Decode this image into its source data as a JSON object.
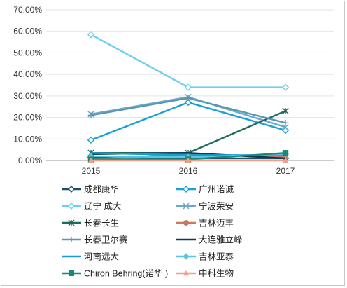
{
  "chart_data": {
    "type": "line",
    "x": [
      "2015",
      "2016",
      "2017"
    ],
    "yticks": [
      "0.00%",
      "10.00%",
      "20.00%",
      "30.00%",
      "40.00%",
      "50.00%",
      "60.00%",
      "70.00%"
    ],
    "ylim": [
      0,
      70
    ],
    "grid": true,
    "legend_position": "bottom",
    "series": [
      {
        "name": "成都康华",
        "values": [
          1.5,
          1.0,
          1.0
        ],
        "color": "#1b4f6b",
        "marker": "diamond"
      },
      {
        "name": "广州诺诚",
        "values": [
          9.5,
          27.0,
          14.0
        ],
        "color": "#1aa0d6",
        "marker": "diamond"
      },
      {
        "name": "辽宁 成大",
        "values": [
          58.5,
          34.0,
          34.0
        ],
        "color": "#6fd0ee",
        "marker": "diamond"
      },
      {
        "name": "宁波荣安",
        "values": [
          21.5,
          29.5,
          15.5
        ],
        "color": "#6aa9c8",
        "marker": "x"
      },
      {
        "name": "长春长生",
        "values": [
          3.5,
          3.5,
          23.0
        ],
        "color": "#1d6b5d",
        "marker": "star"
      },
      {
        "name": "吉林迈丰",
        "values": [
          0.5,
          3.0,
          1.5
        ],
        "color": "#c9795f",
        "marker": "circle"
      },
      {
        "name": "长春卫尔赛",
        "values": [
          21.0,
          29.0,
          17.5
        ],
        "color": "#5b96b4",
        "marker": "plus"
      },
      {
        "name": "大连雅立峰",
        "values": [
          3.0,
          3.5,
          1.0
        ],
        "color": "#0f3a4f",
        "marker": "none"
      },
      {
        "name": "河南远大",
        "values": [
          3.5,
          2.5,
          2.5
        ],
        "color": "#1a9bd3",
        "marker": "none"
      },
      {
        "name": "吉林亚泰",
        "values": [
          2.0,
          1.5,
          3.0
        ],
        "color": "#5bc4e8",
        "marker": "diamond-filled"
      },
      {
        "name": "Chiron Behring(诺华 )",
        "values": [
          0.5,
          0.5,
          3.5
        ],
        "color": "#168a78",
        "marker": "square"
      },
      {
        "name": "中科生物",
        "values": [
          0.0,
          0.0,
          0.0
        ],
        "color": "#f0a08a",
        "marker": "triangle"
      }
    ]
  }
}
